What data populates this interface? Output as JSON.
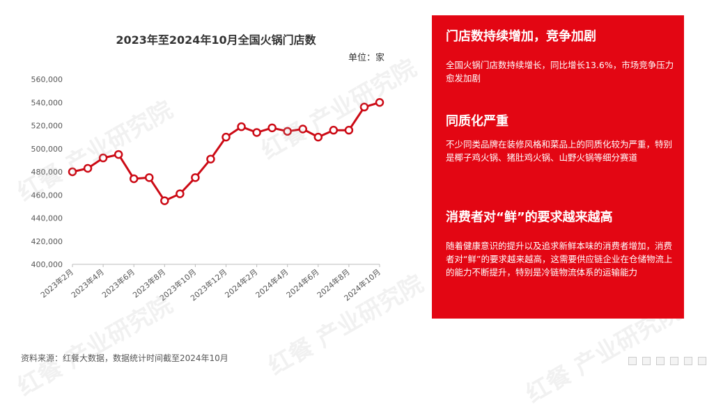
{
  "chart_data": {
    "type": "line",
    "title": "2023年至2024年10月全国火锅门店数",
    "unit_label": "单位：家",
    "categories": [
      "2023年2月",
      "2023年3月",
      "2023年4月",
      "2023年5月",
      "2023年6月",
      "2023年7月",
      "2023年8月",
      "2023年9月",
      "2023年10月",
      "2023年11月",
      "2023年12月",
      "2024年1月",
      "2024年2月",
      "2024年3月",
      "2024年4月",
      "2024年5月",
      "2024年6月",
      "2024年7月",
      "2024年8月",
      "2024年9月",
      "2024年10月"
    ],
    "tick_labels": [
      "2023年2月",
      "2023年4月",
      "2023年6月",
      "2023年8月",
      "2023年10月",
      "2023年12月",
      "2024年2月",
      "2024年4月",
      "2024年6月",
      "2024年8月",
      "2024年10月"
    ],
    "values": [
      480000,
      483000,
      492000,
      495000,
      474000,
      475000,
      455000,
      461000,
      475000,
      491000,
      510000,
      519000,
      514000,
      518000,
      515000,
      517000,
      510000,
      516000,
      516000,
      536000,
      540000
    ],
    "ylim": [
      400000,
      560000
    ],
    "yticks": [
      400000,
      420000,
      440000,
      460000,
      480000,
      500000,
      520000,
      540000,
      560000
    ],
    "ytick_labels": [
      "400,000",
      "420,000",
      "440,000",
      "460,000",
      "480,000",
      "500,000",
      "520,000",
      "540,000",
      "560,000"
    ],
    "grid": false,
    "line_color": "#cc0a15",
    "marker": "hollow-circle"
  },
  "source_note": "资料来源：红餐大数据，数据统计时间截至2024年10月",
  "panel": {
    "bg_color": "#e30613",
    "sections": [
      {
        "title": "门店数持续增加，竞争加剧",
        "body": "全国火锅门店数持续增长，同比增长13.6%，市场竞争压力愈发加剧"
      },
      {
        "title": "同质化严重",
        "body": "不少同类品牌在装修风格和菜品上的同质化较为严重，特别是椰子鸡火锅、猪肚鸡火锅、山野火锅等细分赛道"
      },
      {
        "title": "消费者对“鲜”的要求越来越高",
        "body": "随着健康意识的提升以及追求新鲜本味的消费者增加，消费者对“鲜”的要求越来越高，这需要供应链企业在仓储物流上的能力不断提升，特别是冷链物流体系的运输能力"
      }
    ]
  },
  "watermark": "红餐 产业研究院"
}
